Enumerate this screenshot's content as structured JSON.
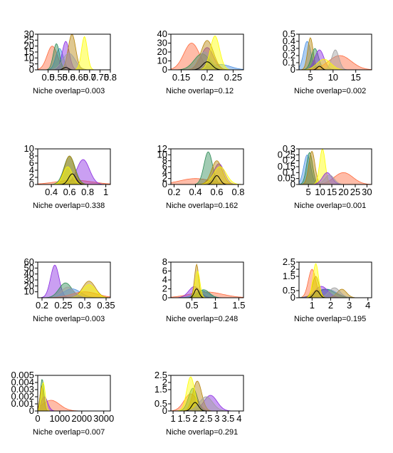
{
  "figure": {
    "fill_colors": [
      "#ff6a3d",
      "#4a90e2",
      "#8a2be2",
      "#2e8b57",
      "#ffff00",
      "#b8860b",
      "#9e9e9e",
      "#000000"
    ]
  },
  "chart_data": [
    {
      "type": "area",
      "caption": "Niche overlap=0.003",
      "xlim": [
        0.45,
        0.8
      ],
      "ylim": [
        0,
        30
      ],
      "xticks": [
        0.5,
        0.55,
        0.6,
        0.65,
        0.7,
        0.75,
        0.8
      ],
      "xtick_labels": [
        "0.5",
        "0.55",
        "0.6",
        "0.65",
        "0.7",
        "0.75",
        "0.8"
      ],
      "yticks": [
        0,
        5,
        10,
        15,
        20,
        25,
        30
      ],
      "ytick_labels": [
        "0",
        "5",
        "10",
        "15",
        "20",
        "25",
        "30"
      ],
      "series": [
        {
          "color": "#ff6a3d",
          "peaks": [
            [
              0.52,
              20,
              0.025
            ]
          ]
        },
        {
          "color": "#4a90e2",
          "peaks": [
            [
              0.555,
              18,
              0.018
            ]
          ]
        },
        {
          "color": "#8a2be2",
          "peaks": [
            [
              0.585,
              24,
              0.017
            ]
          ]
        },
        {
          "color": "#2e8b57",
          "peaks": [
            [
              0.54,
              22,
              0.015
            ]
          ]
        },
        {
          "color": "#b8860b",
          "peaks": [
            [
              0.615,
              30,
              0.018
            ]
          ]
        },
        {
          "color": "#9e9e9e",
          "peaks": [
            [
              0.6,
              14,
              0.03
            ]
          ]
        },
        {
          "color": "#ffff00",
          "peaks": [
            [
              0.675,
              28,
              0.014
            ]
          ]
        },
        {
          "color": "#000000",
          "peaks": [
            [
              0.585,
              2,
              0.012
            ]
          ]
        }
      ]
    },
    {
      "type": "area",
      "caption": "Niche overlap=0.12",
      "xlim": [
        0.13,
        0.27
      ],
      "ylim": [
        0,
        40
      ],
      "xticks": [
        0.15,
        0.2,
        0.25
      ],
      "xtick_labels": [
        "0.15",
        "0.2",
        "0.25"
      ],
      "yticks": [
        0,
        10,
        20,
        30,
        40
      ],
      "ytick_labels": [
        "0",
        "10",
        "20",
        "30",
        "40"
      ],
      "series": [
        {
          "color": "#ff6a3d",
          "peaks": [
            [
              0.17,
              30,
              0.015
            ]
          ]
        },
        {
          "color": "#4a90e2",
          "peaks": [
            [
              0.225,
              6,
              0.02
            ]
          ]
        },
        {
          "color": "#8a2be2",
          "peaks": [
            [
              0.2,
              25,
              0.012
            ]
          ]
        },
        {
          "color": "#2e8b57",
          "peaks": [
            [
              0.19,
              18,
              0.015
            ]
          ]
        },
        {
          "color": "#b8860b",
          "peaks": [
            [
              0.2,
              33,
              0.012
            ]
          ]
        },
        {
          "color": "#9e9e9e",
          "peaks": [
            [
              0.195,
              20,
              0.013
            ]
          ]
        },
        {
          "color": "#ffff00",
          "peaks": [
            [
              0.215,
              38,
              0.009
            ]
          ]
        },
        {
          "color": "#000000",
          "peaks": [
            [
              0.2,
              9,
              0.009
            ]
          ]
        }
      ]
    },
    {
      "type": "area",
      "caption": "Niche overlap=0.002",
      "xlim": [
        2.5,
        18.5
      ],
      "ylim": [
        0,
        0.5
      ],
      "xticks": [
        5,
        10,
        15
      ],
      "xtick_labels": [
        "5",
        "10",
        "15"
      ],
      "yticks": [
        0,
        0.1,
        0.2,
        0.3,
        0.4,
        0.5
      ],
      "ytick_labels": [
        "0",
        "0.1",
        "0.2",
        "0.3",
        "0.4",
        "0.5"
      ],
      "series": [
        {
          "color": "#4a90e2",
          "peaks": [
            [
              4.3,
              0.4,
              0.8
            ]
          ]
        },
        {
          "color": "#b8860b",
          "peaks": [
            [
              5.0,
              0.45,
              0.6
            ]
          ]
        },
        {
          "color": "#2e8b57",
          "peaks": [
            [
              6.0,
              0.3,
              0.8
            ]
          ]
        },
        {
          "color": "#8a2be2",
          "peaks": [
            [
              7.0,
              0.28,
              1.0
            ]
          ]
        },
        {
          "color": "#ff6a3d",
          "peaks": [
            [
              11.5,
              0.2,
              2.5
            ]
          ]
        },
        {
          "color": "#9e9e9e",
          "peaks": [
            [
              10.5,
              0.28,
              0.8
            ]
          ]
        },
        {
          "color": "#ffff00",
          "peaks": [
            [
              8.0,
              0.15,
              1.5
            ]
          ]
        },
        {
          "color": "#000000",
          "peaks": [
            [
              7.0,
              0.05,
              0.5
            ]
          ]
        }
      ]
    },
    {
      "type": "area",
      "caption": "Niche overlap=0.338",
      "xlim": [
        0.25,
        1.05
      ],
      "ylim": [
        0,
        10
      ],
      "xticks": [
        0.4,
        0.6,
        0.8,
        1
      ],
      "xtick_labels": [
        "0.4",
        "0.6",
        "0.8",
        "1"
      ],
      "yticks": [
        0,
        2,
        4,
        6,
        8,
        10
      ],
      "ytick_labels": [
        "0",
        "2",
        "4",
        "6",
        "8",
        "10"
      ],
      "series": [
        {
          "color": "#ff6a3d",
          "peaks": [
            [
              0.65,
              1.2,
              0.2
            ]
          ]
        },
        {
          "color": "#8a2be2",
          "peaks": [
            [
              0.75,
              7,
              0.07
            ]
          ]
        },
        {
          "color": "#2e8b57",
          "peaks": [
            [
              0.6,
              8,
              0.06
            ]
          ]
        },
        {
          "color": "#b8860b",
          "peaks": [
            [
              0.6,
              8,
              0.055
            ]
          ]
        },
        {
          "color": "#ffff00",
          "peaks": [
            [
              0.58,
              5,
              0.05
            ]
          ]
        },
        {
          "color": "#000000",
          "peaks": [
            [
              0.63,
              3,
              0.04
            ]
          ]
        }
      ]
    },
    {
      "type": "area",
      "caption": "Niche overlap=0.162",
      "xlim": [
        0.17,
        0.85
      ],
      "ylim": [
        0,
        12
      ],
      "xticks": [
        0.2,
        0.4,
        0.6,
        0.8
      ],
      "xtick_labels": [
        "0.2",
        "0.4",
        "0.6",
        "0.8"
      ],
      "yticks": [
        0,
        2,
        4,
        6,
        8,
        10,
        12
      ],
      "ytick_labels": [
        "0",
        "2",
        "4",
        "6",
        "8",
        "10",
        "12"
      ],
      "series": [
        {
          "color": "#ff6a3d",
          "peaks": [
            [
              0.4,
              2,
              0.15
            ]
          ]
        },
        {
          "color": "#2e8b57",
          "peaks": [
            [
              0.52,
              11,
              0.04
            ]
          ]
        },
        {
          "color": "#8a2be2",
          "peaks": [
            [
              0.62,
              7,
              0.05
            ]
          ]
        },
        {
          "color": "#b8860b",
          "peaks": [
            [
              0.6,
              8,
              0.05
            ]
          ]
        },
        {
          "color": "#ffff00",
          "peaks": [
            [
              0.63,
              6,
              0.06
            ]
          ]
        },
        {
          "color": "#000000",
          "peaks": [
            [
              0.6,
              3,
              0.03
            ]
          ]
        }
      ]
    },
    {
      "type": "area",
      "caption": "Niche overlap=0.001",
      "xlim": [
        1,
        32
      ],
      "ylim": [
        0,
        0.3
      ],
      "xticks": [
        5,
        10,
        15,
        20,
        25,
        30
      ],
      "xtick_labels": [
        "5",
        "10",
        "15",
        "20",
        "25",
        "30"
      ],
      "yticks": [
        0,
        0.05,
        0.1,
        0.15,
        0.2,
        0.25,
        0.3
      ],
      "ytick_labels": [
        "0",
        "0.05",
        "0.1",
        "0.15",
        "0.2",
        "0.25",
        "0.3"
      ],
      "series": [
        {
          "color": "#ff6a3d",
          "peaks": [
            [
              20,
              0.1,
              4
            ]
          ]
        },
        {
          "color": "#4a90e2",
          "peaks": [
            [
              4.5,
              0.25,
              1.5
            ]
          ]
        },
        {
          "color": "#2e8b57",
          "peaks": [
            [
              5.5,
              0.27,
              1.3
            ]
          ]
        },
        {
          "color": "#b8860b",
          "peaks": [
            [
              6.5,
              0.28,
              1.3
            ]
          ]
        },
        {
          "color": "#ffff00",
          "peaks": [
            [
              11,
              0.3,
              1.2
            ]
          ]
        },
        {
          "color": "#8a2be2",
          "peaks": [
            [
              13,
              0.1,
              2
            ]
          ]
        },
        {
          "color": "#9e9e9e",
          "peaks": [
            [
              14,
              0.08,
              2
            ]
          ]
        }
      ]
    },
    {
      "type": "area",
      "caption": "Niche overlap=0.003",
      "xlim": [
        0.19,
        0.36
      ],
      "ylim": [
        0,
        60
      ],
      "xticks": [
        0.2,
        0.25,
        0.3,
        0.35
      ],
      "xtick_labels": [
        "0.2",
        "0.25",
        "0.3",
        "0.35"
      ],
      "yticks": [
        10,
        20,
        30,
        40,
        50,
        60
      ],
      "ytick_labels": [
        "10",
        "20",
        "30",
        "40",
        "50",
        "60"
      ],
      "series": [
        {
          "color": "#8a2be2",
          "peaks": [
            [
              0.23,
              55,
              0.01
            ]
          ]
        },
        {
          "color": "#2e8b57",
          "peaks": [
            [
              0.255,
              25,
              0.015
            ]
          ]
        },
        {
          "color": "#4a90e2",
          "peaks": [
            [
              0.27,
              15,
              0.02
            ]
          ]
        },
        {
          "color": "#ff6a3d",
          "peaks": [
            [
              0.3,
              10,
              0.03
            ]
          ]
        },
        {
          "color": "#b8860b",
          "peaks": [
            [
              0.31,
              28,
              0.015
            ]
          ]
        },
        {
          "color": "#ffff00",
          "peaks": [
            [
              0.31,
              22,
              0.015
            ]
          ]
        },
        {
          "color": "#9e9e9e",
          "peaks": [
            [
              0.26,
              18,
              0.015
            ]
          ]
        }
      ]
    },
    {
      "type": "area",
      "caption": "Niche overlap=0.248",
      "xlim": [
        0.05,
        1.6
      ],
      "ylim": [
        0,
        8
      ],
      "xticks": [
        0.5,
        1,
        1.5
      ],
      "xtick_labels": [
        "0.5",
        "1",
        "1.5"
      ],
      "yticks": [
        0,
        2,
        4,
        6,
        8
      ],
      "ytick_labels": [
        "0",
        "2",
        "4",
        "6",
        "8"
      ],
      "series": [
        {
          "color": "#ff6a3d",
          "peaks": [
            [
              0.8,
              1.3,
              0.35
            ]
          ]
        },
        {
          "color": "#8a2be2",
          "peaks": [
            [
              0.55,
              2.5,
              0.12
            ]
          ]
        },
        {
          "color": "#4a90e2",
          "peaks": [
            [
              0.7,
              1.6,
              0.15
            ]
          ]
        },
        {
          "color": "#2e8b57",
          "peaks": [
            [
              0.75,
              1.8,
              0.12
            ]
          ]
        },
        {
          "color": "#b8860b",
          "peaks": [
            [
              0.6,
              7.5,
              0.045
            ]
          ]
        },
        {
          "color": "#ffff00",
          "peaks": [
            [
              0.62,
              6,
              0.05
            ]
          ]
        },
        {
          "color": "#000000",
          "peaks": [
            [
              0.6,
              2,
              0.05
            ]
          ]
        }
      ]
    },
    {
      "type": "area",
      "caption": "Niche overlap=0.195",
      "xlim": [
        0.3,
        4.2
      ],
      "ylim": [
        0,
        2.5
      ],
      "xticks": [
        1,
        2,
        3,
        4
      ],
      "xtick_labels": [
        "1",
        "2",
        "3",
        "4"
      ],
      "yticks": [
        0,
        0.5,
        1.5,
        2,
        2.5
      ],
      "ytick_labels": [
        "0",
        "0.5",
        "1.5",
        "2",
        "2.5"
      ],
      "series": [
        {
          "color": "#ff6a3d",
          "peaks": [
            [
              1.0,
              2.0,
              0.2
            ]
          ]
        },
        {
          "color": "#4a90e2",
          "peaks": [
            [
              1.8,
              0.6,
              0.5
            ]
          ]
        },
        {
          "color": "#2e8b57",
          "peaks": [
            [
              1.7,
              0.6,
              0.5
            ]
          ]
        },
        {
          "color": "#8a2be2",
          "peaks": [
            [
              1.5,
              0.8,
              0.35
            ]
          ]
        },
        {
          "color": "#b8860b",
          "peaks": [
            [
              1.2,
              1.5,
              0.18
            ],
            [
              2.6,
              0.6,
              0.25
            ]
          ]
        },
        {
          "color": "#9e9e9e",
          "peaks": [
            [
              2.2,
              0.7,
              0.3
            ]
          ]
        },
        {
          "color": "#ffff00",
          "peaks": [
            [
              1.2,
              2.4,
              0.15
            ]
          ]
        },
        {
          "color": "#000000",
          "peaks": [
            [
              1.25,
              0.5,
              0.15
            ]
          ]
        }
      ]
    },
    {
      "type": "area",
      "caption": "Niche overlap=0.007",
      "xlim": [
        0,
        3300
      ],
      "ylim": [
        0,
        0.005
      ],
      "xticks": [
        0,
        1000,
        2000,
        3000
      ],
      "xtick_labels": [
        "0",
        "1000",
        "2000",
        "3000"
      ],
      "yticks": [
        0,
        0.001,
        0.002,
        0.003,
        0.004,
        0.005
      ],
      "ytick_labels": [
        "0",
        "0.001",
        "0.002",
        "0.003",
        "0.004",
        "0.005"
      ],
      "series": [
        {
          "color": "#ff6a3d",
          "peaks": [
            [
              600,
              0.0015,
              400
            ]
          ]
        },
        {
          "color": "#2e8b57",
          "peaks": [
            [
              200,
              0.0045,
              80
            ]
          ]
        },
        {
          "color": "#8a2be2",
          "peaks": [
            [
              300,
              0.002,
              150
            ]
          ]
        },
        {
          "color": "#b8860b",
          "peaks": [
            [
              180,
              0.0035,
              80
            ]
          ]
        },
        {
          "color": "#ffff00",
          "peaks": [
            [
              250,
              0.004,
              90
            ]
          ]
        }
      ]
    },
    {
      "type": "area",
      "caption": "Niche overlap=0.291",
      "xlim": [
        0.9,
        4.2
      ],
      "ylim": [
        0,
        2.5
      ],
      "xticks": [
        1,
        1.5,
        2,
        2.5,
        3,
        3.5,
        4
      ],
      "xtick_labels": [
        "1",
        "1.5",
        "2",
        "2.5",
        "3",
        "3.5",
        "4"
      ],
      "yticks": [
        0,
        0.5,
        1.5,
        2,
        2.5
      ],
      "ytick_labels": [
        "0",
        "0.5",
        "1.5",
        "2",
        "2.5"
      ],
      "series": [
        {
          "color": "#ff6a3d",
          "peaks": [
            [
              1.8,
              1.2,
              0.3
            ]
          ]
        },
        {
          "color": "#8a2be2",
          "peaks": [
            [
              2.7,
              1.1,
              0.3
            ]
          ]
        },
        {
          "color": "#2e8b57",
          "peaks": [
            [
              1.9,
              1.6,
              0.2
            ]
          ]
        },
        {
          "color": "#b8860b",
          "peaks": [
            [
              2.1,
              2.1,
              0.2
            ]
          ]
        },
        {
          "color": "#ffff00",
          "peaks": [
            [
              1.8,
              2.4,
              0.18
            ]
          ]
        },
        {
          "color": "#9e9e9e",
          "peaks": [
            [
              2.5,
              1.0,
              0.3
            ]
          ]
        },
        {
          "color": "#000000",
          "peaks": [
            [
              2.0,
              0.6,
              0.15
            ]
          ]
        }
      ]
    }
  ]
}
